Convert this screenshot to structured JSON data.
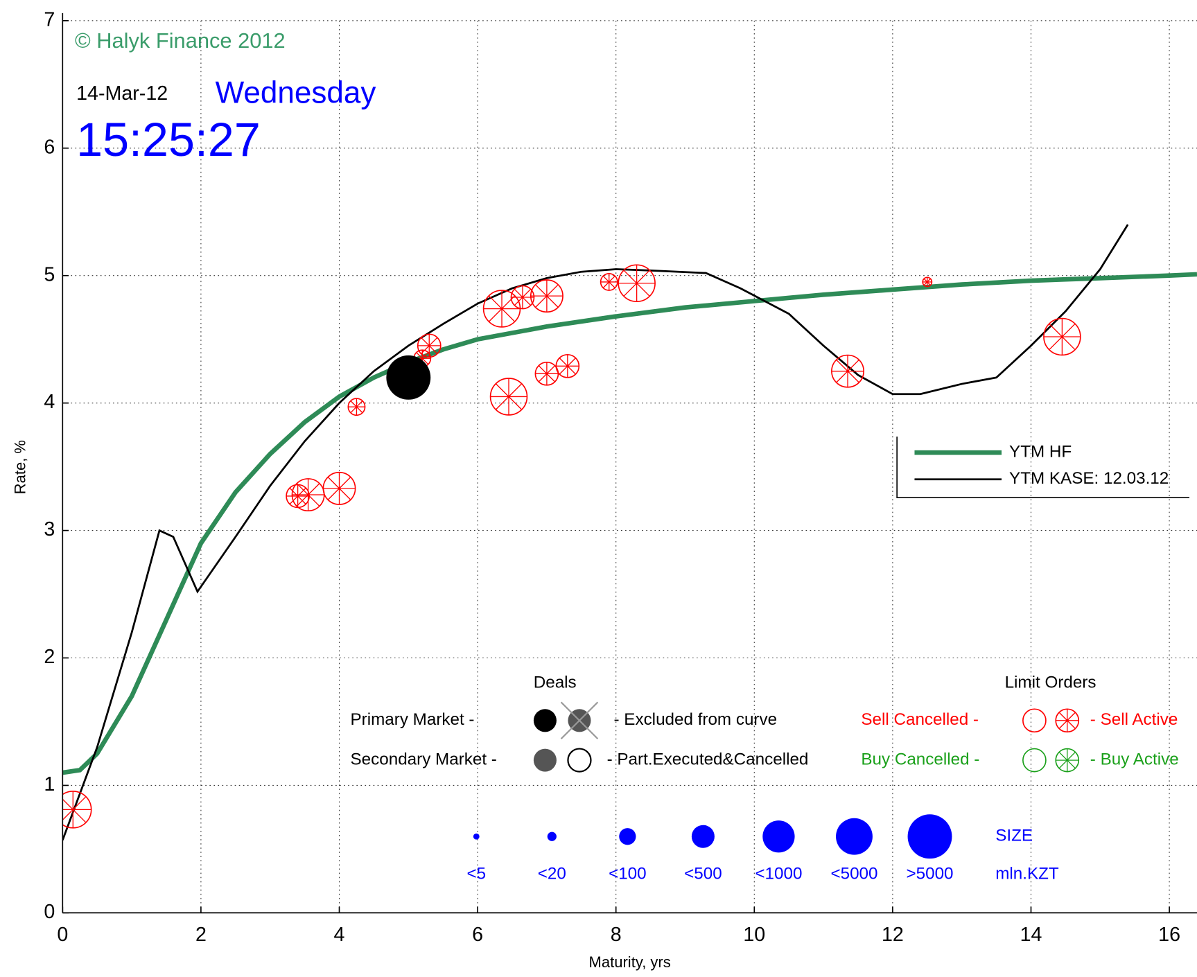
{
  "chart_data": {
    "type": "scatter",
    "x_label": "Maturity, yrs",
    "y_label": "Rate, %",
    "xlim": [
      0,
      16.4
    ],
    "ylim": [
      0,
      7
    ],
    "xticks": [
      0,
      2,
      4,
      6,
      8,
      10,
      12,
      14,
      16
    ],
    "yticks": [
      0,
      1,
      2,
      3,
      4,
      5,
      6,
      7
    ],
    "grid": true,
    "annotations": {
      "copyright": "© Halyk Finance 2012",
      "date": "14-Mar-12",
      "weekday": "Wednesday",
      "time": "15:25:27"
    },
    "series": [
      {
        "name": "YTM HF",
        "type": "line",
        "color": "#2e8b57",
        "x": [
          0,
          0.25,
          0.5,
          1,
          1.5,
          2,
          2.5,
          3,
          3.5,
          4,
          4.5,
          5,
          5.5,
          6,
          7,
          8,
          9,
          10,
          11,
          12,
          13,
          14,
          15,
          16,
          16.4
        ],
        "values": [
          1.1,
          1.12,
          1.25,
          1.7,
          2.3,
          2.9,
          3.3,
          3.6,
          3.85,
          4.05,
          4.2,
          4.32,
          4.42,
          4.5,
          4.6,
          4.68,
          4.75,
          4.8,
          4.85,
          4.89,
          4.93,
          4.96,
          4.98,
          5.0,
          5.01
        ]
      },
      {
        "name": "YTM KASE: 12.03.12",
        "type": "line",
        "color": "#000000",
        "x": [
          0,
          0.5,
          1,
          1.4,
          1.6,
          1.95,
          2.5,
          3,
          3.5,
          4,
          4.5,
          5,
          5.5,
          6,
          6.5,
          7,
          7.5,
          8,
          8.5,
          9.3,
          9.8,
          10.5,
          11,
          11.5,
          12,
          12.4,
          13,
          13.5,
          14,
          14.5,
          15,
          15.4
        ],
        "values": [
          0.57,
          1.3,
          2.2,
          3.0,
          2.95,
          2.52,
          2.95,
          3.35,
          3.7,
          4.0,
          4.25,
          4.45,
          4.62,
          4.78,
          4.9,
          4.98,
          5.03,
          5.05,
          5.04,
          5.02,
          4.9,
          4.7,
          4.45,
          4.22,
          4.07,
          4.07,
          4.15,
          4.2,
          4.45,
          4.72,
          5.05,
          5.4
        ]
      },
      {
        "type": "sell-active",
        "color": "#ff0000",
        "x": [
          0.15,
          3.4,
          3.55,
          4.0,
          4.25,
          5.2,
          5.3,
          6.35,
          6.65,
          7.0,
          6.45,
          7.0,
          7.3,
          7.9,
          8.3,
          11.35,
          12.5,
          14.45
        ],
        "values": [
          0.81,
          3.27,
          3.28,
          3.33,
          3.97,
          4.35,
          4.45,
          4.74,
          4.83,
          4.84,
          4.05,
          4.23,
          4.29,
          4.95,
          4.94,
          4.25,
          4.95,
          4.52
        ],
        "sizes": [
          "<5000",
          "<500",
          "<1000",
          "<1000",
          "<100",
          "<100",
          "<500",
          "<5000",
          "<500",
          "<1000",
          "<5000",
          "<500",
          "<500",
          "<100",
          "<5000",
          "<1000",
          "<20",
          "<5000"
        ]
      },
      {
        "type": "primary-deal",
        "color": "#000000",
        "x": [
          5.0
        ],
        "values": [
          4.2
        ],
        "sizes": [
          ">5000"
        ]
      }
    ],
    "legend": {
      "corner": "right"
    },
    "key": {
      "deals": "Deals",
      "primary": "Primary Market  -",
      "secondary": "Secondary Market -",
      "excluded": "- Excluded from curve",
      "part": "- Part.Executed&Cancelled",
      "limit": "Limit Orders",
      "sell_cancelled": "Sell Cancelled -",
      "sell_active": "- Sell Active",
      "buy_cancelled": "Buy Cancelled -",
      "buy_active": "- Buy Active",
      "size_title": "SIZE",
      "size_unit": "mln.KZT",
      "size_classes": [
        "<5",
        "<20",
        "<100",
        "<500",
        "<1000",
        "<5000",
        ">5000"
      ]
    }
  }
}
